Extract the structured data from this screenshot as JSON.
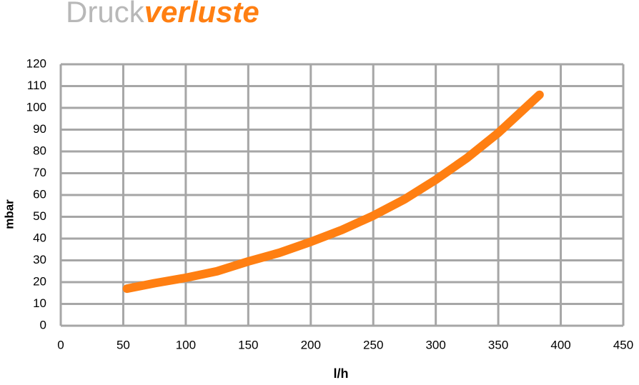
{
  "chart_data": {
    "type": "line",
    "title": [
      "Druck",
      "verluste"
    ],
    "x_label": "l/h",
    "y_label": "mbar",
    "x": [
      53,
      75,
      100,
      125,
      150,
      175,
      200,
      225,
      250,
      275,
      300,
      325,
      350,
      383
    ],
    "series": [
      {
        "name": null,
        "color": "#ff7f12",
        "values": [
          17,
          19.5,
          22,
          25,
          29.5,
          33.5,
          38.5,
          44,
          50.5,
          58,
          67,
          77,
          88.5,
          106
        ]
      }
    ],
    "xlim": [
      0,
      450
    ],
    "xticks": [
      0,
      50,
      100,
      150,
      200,
      250,
      300,
      350,
      400,
      450
    ],
    "ylim": [
      0,
      120
    ],
    "yticks": [
      0,
      10,
      20,
      30,
      40,
      50,
      60,
      70,
      80,
      90,
      100,
      110,
      120
    ],
    "grid": true
  }
}
